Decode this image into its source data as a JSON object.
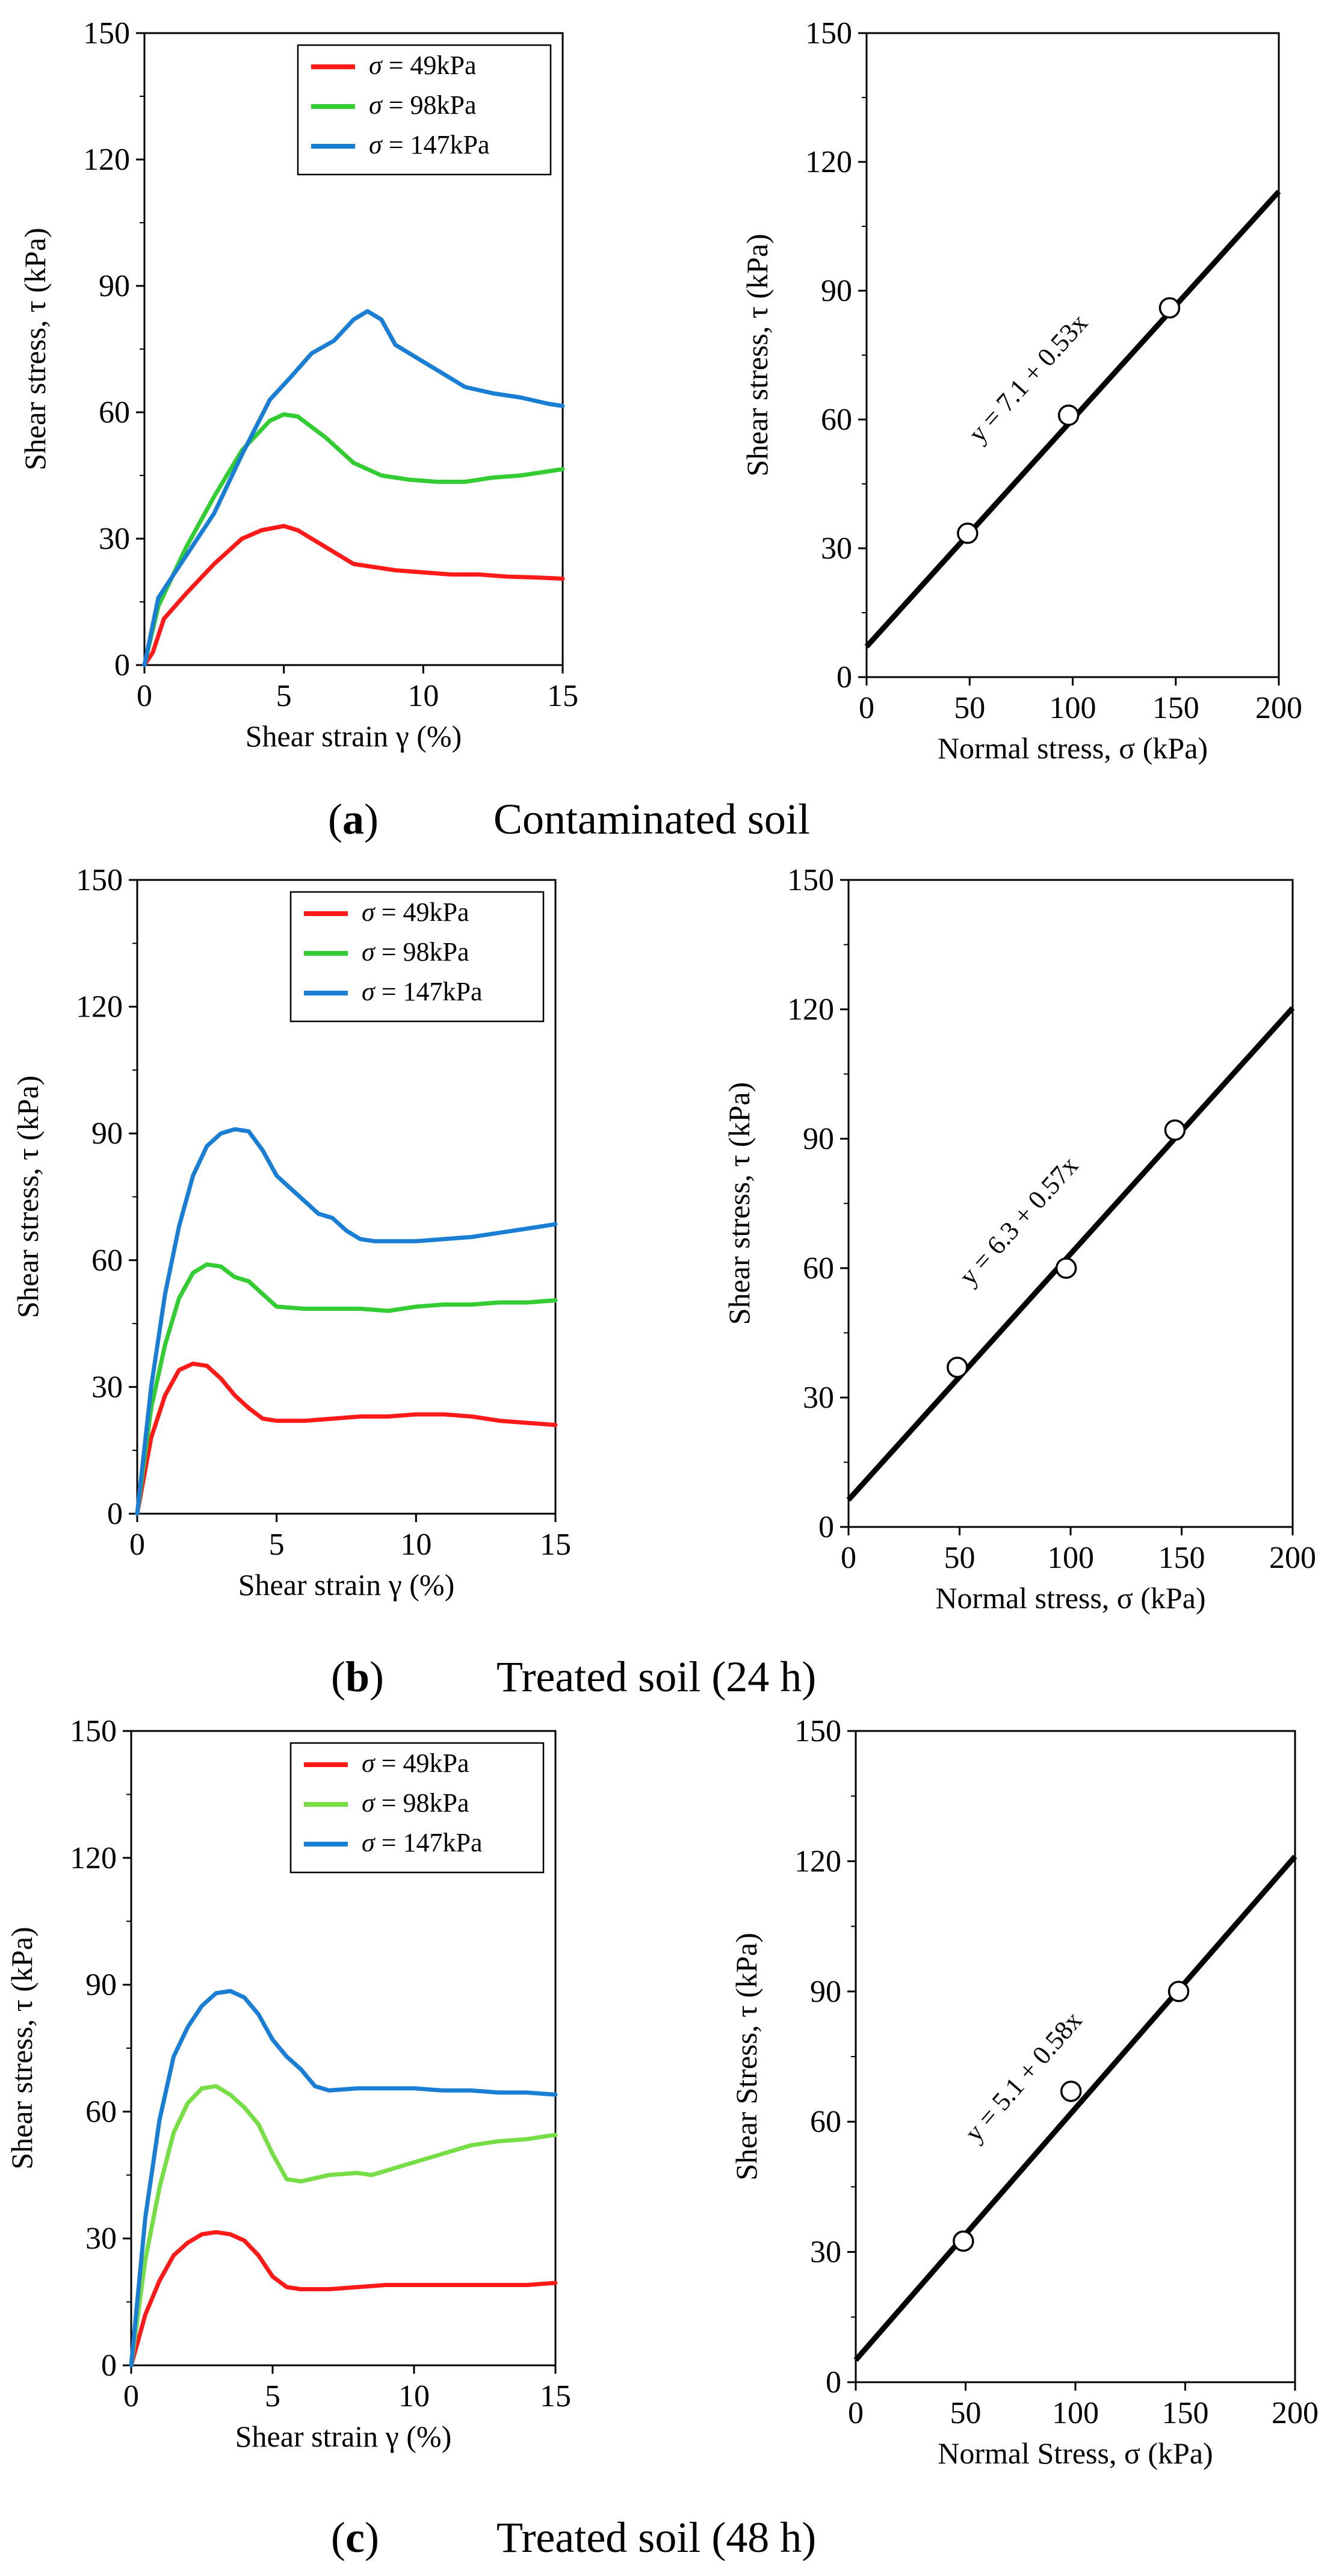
{
  "figure": {
    "panels": [
      {
        "letter": "a",
        "caption": "Contaminated soil"
      },
      {
        "letter": "b",
        "caption": "Treated soil (24 h)"
      },
      {
        "letter": "c",
        "caption": "Treated soil (48 h)"
      }
    ]
  },
  "colors": {
    "s49": "#ff1a1a",
    "s98": "#33cc33",
    "s98_light": "#77dd44",
    "s147": "#1a7fd4",
    "line": "#000000"
  },
  "chart_data": [
    {
      "id": "a-left",
      "type": "line",
      "panel": "a",
      "xlabel": "Shear strain γ (%)",
      "ylabel": "Shear stress, τ (kPa)",
      "xlim": [
        0,
        15
      ],
      "ylim": [
        0,
        150
      ],
      "xticks": [
        "0",
        "5",
        "10",
        "15"
      ],
      "yticks": [
        "0",
        "30",
        "60",
        "90",
        "120",
        "150"
      ],
      "legend_position": "top-right",
      "series": [
        {
          "name": "σ = 49kPa",
          "sigma_symbol": "σ",
          "sigma_value": " = 49kPa",
          "color": "#ff1a1a",
          "x": [
            0,
            0.3,
            0.7,
            1.5,
            2.5,
            3.5,
            4.2,
            5.0,
            5.5,
            6.5,
            7.5,
            9,
            10,
            11,
            12,
            13,
            14,
            15
          ],
          "y": [
            0,
            3,
            11,
            17,
            24,
            30,
            32,
            33,
            32,
            28,
            24,
            22.5,
            22,
            21.5,
            21.5,
            21,
            20.8,
            20.5
          ]
        },
        {
          "name": "σ = 98kPa",
          "sigma_symbol": "σ",
          "sigma_value": " = 98kPa",
          "color": "#33cc33",
          "x": [
            0,
            0.5,
            1.5,
            2.5,
            3.5,
            4.5,
            5,
            5.5,
            6.5,
            7.5,
            8.5,
            9.5,
            10.5,
            11.5,
            12.5,
            13.5,
            14.5,
            15
          ],
          "y": [
            0,
            14,
            28,
            40,
            51,
            58,
            59.5,
            59,
            54,
            48,
            45,
            44,
            43.5,
            43.5,
            44.5,
            45,
            46,
            46.5
          ]
        },
        {
          "name": "σ = 147kPa",
          "sigma_symbol": "σ",
          "sigma_value": " = 147kPa",
          "color": "#1a7fd4",
          "x": [
            0,
            0.5,
            1.5,
            2.5,
            3.5,
            4.5,
            5.2,
            6,
            6.8,
            7.5,
            8,
            8.5,
            9,
            9.5,
            10.5,
            11.5,
            12.5,
            13.5,
            14.5,
            15
          ],
          "y": [
            0,
            16,
            26,
            36,
            50,
            63,
            68,
            74,
            77,
            82,
            84,
            82,
            76,
            74,
            70,
            66,
            64.5,
            63.5,
            62,
            61.5
          ]
        }
      ]
    },
    {
      "id": "a-right",
      "type": "scatter",
      "panel": "a",
      "xlabel": "Normal stress, σ (kPa)",
      "ylabel": "Shear stress, τ (kPa)",
      "xlim": [
        0,
        200
      ],
      "ylim": [
        0,
        150
      ],
      "xticks": [
        "0",
        "50",
        "100",
        "150",
        "200"
      ],
      "yticks": [
        "0",
        "30",
        "60",
        "90",
        "120",
        "150"
      ],
      "points": {
        "x": [
          49,
          98,
          147
        ],
        "y": [
          33.5,
          61,
          86
        ]
      },
      "fit": {
        "intercept": 7.1,
        "slope": 0.53,
        "label": "y = 7.1 + 0.53x"
      }
    },
    {
      "id": "b-left",
      "type": "line",
      "panel": "b",
      "xlabel": "Shear strain γ (%)",
      "ylabel": "Shear stress, τ (kPa)",
      "xlim": [
        0,
        15
      ],
      "ylim": [
        0,
        150
      ],
      "xticks": [
        "0",
        "5",
        "10",
        "15"
      ],
      "yticks": [
        "0",
        "30",
        "60",
        "90",
        "120",
        "150"
      ],
      "legend_position": "top-right",
      "series": [
        {
          "name": "σ = 49kPa",
          "sigma_symbol": "σ",
          "sigma_value": " = 49kPa",
          "color": "#ff1a1a",
          "x": [
            0,
            0.5,
            1,
            1.5,
            2,
            2.5,
            3,
            3.5,
            4,
            4.5,
            5,
            6,
            7,
            8,
            9,
            10,
            11,
            12,
            13,
            14,
            15
          ],
          "y": [
            0,
            18,
            28,
            34,
            35.5,
            35,
            32,
            28,
            25,
            22.5,
            22,
            22,
            22.5,
            23,
            23,
            23.5,
            23.5,
            23,
            22,
            21.5,
            21
          ]
        },
        {
          "name": "σ = 98kPa",
          "sigma_symbol": "σ",
          "sigma_value": " = 98kPa",
          "color": "#33cc33",
          "x": [
            0,
            0.5,
            1,
            1.5,
            2,
            2.5,
            3,
            3.5,
            4,
            4.5,
            5,
            6,
            7,
            8,
            9,
            10,
            11,
            12,
            13,
            14,
            15
          ],
          "y": [
            0,
            25,
            40,
            51,
            57,
            59,
            58.5,
            56,
            55,
            52,
            49,
            48.5,
            48.5,
            48.5,
            48,
            49,
            49.5,
            49.5,
            50,
            50,
            50.5
          ]
        },
        {
          "name": "σ = 147kPa",
          "sigma_symbol": "σ",
          "sigma_value": " = 147kPa",
          "color": "#1a7fd4",
          "x": [
            0,
            0.5,
            1,
            1.5,
            2,
            2.5,
            3,
            3.5,
            4,
            4.5,
            5,
            5.5,
            6,
            6.5,
            7,
            7.5,
            8,
            8.5,
            9,
            10,
            11,
            12,
            13,
            14,
            15
          ],
          "y": [
            0,
            30,
            52,
            68,
            80,
            87,
            90,
            91,
            90.5,
            86,
            80,
            77,
            74,
            71,
            70,
            67,
            65,
            64.5,
            64.5,
            64.5,
            65,
            65.5,
            66.5,
            67.5,
            68.5
          ]
        }
      ]
    },
    {
      "id": "b-right",
      "type": "scatter",
      "panel": "b",
      "xlabel": "Normal stress, σ (kPa)",
      "ylabel": "Shear stress, τ  (kPa)",
      "xlim": [
        0,
        200
      ],
      "ylim": [
        0,
        150
      ],
      "xticks": [
        "0",
        "50",
        "100",
        "150",
        "200"
      ],
      "yticks": [
        "0",
        "30",
        "60",
        "90",
        "120",
        "150"
      ],
      "points": {
        "x": [
          49,
          98,
          147
        ],
        "y": [
          37,
          60,
          92
        ]
      },
      "fit": {
        "intercept": 6.3,
        "slope": 0.57,
        "label": "y = 6.3 + 0.57x"
      }
    },
    {
      "id": "c-left",
      "type": "line",
      "panel": "c",
      "xlabel": "Shear strain γ (%)",
      "ylabel": "Shear stress, τ (kPa)",
      "xlim": [
        0,
        15
      ],
      "ylim": [
        0,
        150
      ],
      "xticks": [
        "0",
        "5",
        "10",
        "15"
      ],
      "yticks": [
        "0",
        "30",
        "60",
        "90",
        "120",
        "150"
      ],
      "legend_position": "top-right",
      "series": [
        {
          "name": "σ = 49kPa",
          "sigma_symbol": "σ",
          "sigma_value": " = 49kPa",
          "color": "#ff1a1a",
          "x": [
            0,
            0.5,
            1,
            1.5,
            2,
            2.5,
            3,
            3.5,
            4,
            4.5,
            5,
            5.5,
            6,
            7,
            8,
            9,
            10,
            11,
            12,
            13,
            14,
            15
          ],
          "y": [
            0,
            12,
            20,
            26,
            29,
            31,
            31.5,
            31,
            29.5,
            26,
            21,
            18.5,
            18,
            18,
            18.5,
            19,
            19,
            19,
            19,
            19,
            19,
            19.5
          ]
        },
        {
          "name": "σ = 98kPa",
          "sigma_symbol": "σ",
          "sigma_value": " = 98kPa",
          "color": "#77dd44",
          "x": [
            0,
            0.5,
            1,
            1.5,
            2,
            2.5,
            3,
            3.5,
            4,
            4.5,
            5,
            5.5,
            6,
            7,
            8,
            8.5,
            9,
            10,
            11,
            12,
            13,
            14,
            15
          ],
          "y": [
            0,
            25,
            42,
            55,
            62,
            65.5,
            66,
            64,
            61,
            57,
            50,
            44,
            43.5,
            45,
            45.5,
            45,
            46,
            48,
            50,
            52,
            53,
            53.5,
            54.5
          ]
        },
        {
          "name": "σ = 147kPa",
          "sigma_symbol": "σ",
          "sigma_value": " = 147kPa",
          "color": "#1a7fd4",
          "x": [
            0,
            0.5,
            1,
            1.5,
            2,
            2.5,
            3,
            3.5,
            4,
            4.5,
            5,
            5.5,
            6,
            6.5,
            7,
            8,
            9,
            10,
            11,
            12,
            13,
            14,
            15
          ],
          "y": [
            0,
            35,
            58,
            73,
            80,
            85,
            88,
            88.5,
            87,
            83,
            77,
            73,
            70,
            66,
            65,
            65.5,
            65.5,
            65.5,
            65,
            65,
            64.5,
            64.5,
            64
          ]
        }
      ]
    },
    {
      "id": "c-right",
      "type": "scatter",
      "panel": "c",
      "xlabel": "Normal Stress, σ (kPa)",
      "ylabel": "Shear Stress, τ  (kPa)",
      "xlim": [
        0,
        200
      ],
      "ylim": [
        0,
        150
      ],
      "xticks": [
        "0",
        "50",
        "100",
        "150",
        "200"
      ],
      "yticks": [
        "0",
        "30",
        "60",
        "90",
        "120",
        "150"
      ],
      "points": {
        "x": [
          49,
          98,
          147
        ],
        "y": [
          32.5,
          67,
          90
        ]
      },
      "fit": {
        "intercept": 5.1,
        "slope": 0.58,
        "label": "y = 5.1 + 0.58x"
      }
    }
  ]
}
